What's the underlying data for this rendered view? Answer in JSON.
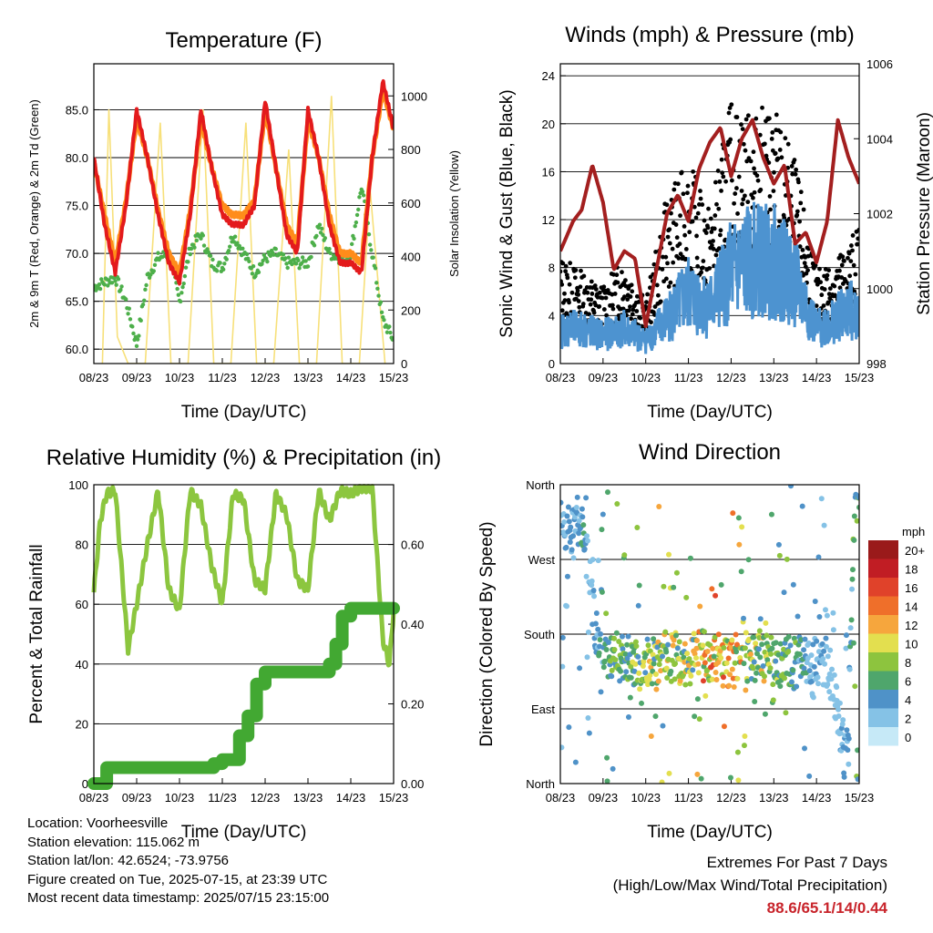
{
  "chart_data": [
    {
      "type": "line",
      "title": "Temperature (F)",
      "xlabel": "Time (Day/UTC)",
      "ylabel": "2m & 9m T (Red, Orange) & 2m Td (Green)",
      "ylabel_right": "Solar Insolation (Yellow)",
      "x_ticks": [
        "08/23",
        "09/23",
        "10/23",
        "11/23",
        "12/23",
        "13/23",
        "14/23",
        "15/23"
      ],
      "y_ticks": [
        "60.0",
        "65.0",
        "70.0",
        "75.0",
        "80.0",
        "85.0"
      ],
      "y_ticks_right": [
        "0",
        "200",
        "400",
        "600",
        "800",
        "1000"
      ],
      "ylim": [
        58.5,
        89.8
      ],
      "ylim_right": [
        0,
        1120
      ],
      "series": [
        {
          "name": "2m T",
          "color": "#e31a1c",
          "x": [
            0,
            0.25,
            0.5,
            0.75,
            1,
            1.25,
            1.5,
            1.75,
            2,
            2.25,
            2.5,
            2.75,
            3,
            3.25,
            3.5,
            3.75,
            4,
            4.25,
            4.5,
            4.75,
            5,
            5.25,
            5.5,
            5.75,
            6,
            6.25,
            6.5,
            6.75,
            7
          ],
          "values": [
            80,
            73,
            68,
            75,
            85,
            80,
            74,
            69,
            67,
            74,
            85,
            79,
            74,
            73,
            73,
            75,
            86,
            79,
            72,
            70,
            85,
            80,
            73,
            69,
            69,
            68,
            80,
            88,
            83
          ]
        },
        {
          "name": "9m T",
          "color": "#ff8c1a",
          "x": [
            0,
            0.25,
            0.5,
            0.75,
            1,
            1.25,
            1.5,
            1.75,
            2,
            2.25,
            2.5,
            2.75,
            3,
            3.25,
            3.5,
            3.75,
            4,
            4.25,
            4.5,
            4.75,
            5,
            5.25,
            5.5,
            5.75,
            6,
            6.25,
            6.5,
            6.75,
            7
          ],
          "values": [
            79.5,
            74,
            69,
            75.5,
            84,
            80,
            74.5,
            70,
            68,
            74.5,
            84,
            79,
            75,
            74,
            74,
            75.5,
            85,
            79,
            73,
            71,
            84,
            80,
            74,
            70,
            70,
            69,
            80,
            87,
            83
          ]
        },
        {
          "name": "2m Td",
          "color": "#4daf4a",
          "x": [
            0,
            0.25,
            0.5,
            0.75,
            1,
            1.25,
            1.5,
            1.75,
            2,
            2.25,
            2.5,
            2.75,
            3,
            3.25,
            3.5,
            3.75,
            4,
            4.25,
            4.5,
            4.75,
            5,
            5.25,
            5.5,
            5.75,
            6,
            6.25,
            6.5,
            6.75,
            7
          ],
          "values": [
            66.5,
            67,
            67.5,
            65,
            60.5,
            67.5,
            69.5,
            70,
            65,
            70.5,
            72,
            69,
            68.5,
            72,
            70,
            68,
            69.5,
            70,
            69,
            69,
            69,
            73,
            70,
            69.5,
            70,
            77,
            70,
            63,
            61
          ]
        },
        {
          "name": "Solar Insolation",
          "axis": "right",
          "color": "#f7e07a",
          "x": [
            0.2,
            0.35,
            0.55,
            0.8,
            1.2,
            1.55,
            1.8,
            2.2,
            2.55,
            2.8,
            3.2,
            3.55,
            3.8,
            4.2,
            4.55,
            4.8,
            5.2,
            5.55,
            5.8,
            6.2,
            6.45,
            6.8
          ],
          "values": [
            0,
            950,
            100,
            0,
            0,
            900,
            0,
            0,
            950,
            0,
            0,
            900,
            0,
            0,
            800,
            0,
            0,
            1000,
            0,
            0,
            650,
            0
          ]
        }
      ]
    },
    {
      "type": "scatter",
      "title": "Winds (mph) & Pressure (mb)",
      "xlabel": "Time (Day/UTC)",
      "ylabel": "Sonic Wind & Gust (Blue, Black)",
      "ylabel_right": "Station Pressure (Maroon)",
      "x_ticks": [
        "08/23",
        "09/23",
        "10/23",
        "11/23",
        "12/23",
        "13/23",
        "14/23",
        "15/23"
      ],
      "y_ticks": [
        "0",
        "4",
        "8",
        "12",
        "16",
        "20",
        "24"
      ],
      "y_ticks_right": [
        "998",
        "1000",
        "1002",
        "1004",
        "1006"
      ],
      "ylim": [
        0,
        25
      ],
      "ylim_right": [
        998,
        1006
      ],
      "series": [
        {
          "name": "Sonic Wind",
          "color": "#4d93d0",
          "x": [
            0,
            0.5,
            1,
            1.5,
            2,
            2.5,
            3,
            3.5,
            4,
            4.5,
            5,
            5.5,
            6,
            6.5,
            7
          ],
          "values": [
            3,
            3,
            2.5,
            3,
            2,
            4,
            6,
            5,
            8,
            9,
            9,
            7,
            3,
            4,
            5
          ]
        },
        {
          "name": "Gust",
          "color": "#000000",
          "x": [
            0,
            0.5,
            1,
            1.5,
            2,
            2.5,
            3,
            3.5,
            4,
            4.5,
            5,
            5.5,
            6,
            6.5,
            7
          ],
          "values": [
            7,
            6,
            5,
            7,
            4,
            11,
            13,
            10,
            17,
            16,
            17,
            13,
            6,
            7,
            9
          ]
        },
        {
          "name": "Station Pressure",
          "axis": "right",
          "color": "#a31f1f",
          "x": [
            0,
            0.3,
            0.5,
            0.75,
            1,
            1.25,
            1.5,
            1.75,
            2,
            2.25,
            2.5,
            2.75,
            3,
            3.25,
            3.5,
            3.75,
            4,
            4.25,
            4.5,
            4.75,
            5,
            5.25,
            5.5,
            5.75,
            6,
            6.25,
            6.5,
            6.75,
            7
          ],
          "values": [
            1001,
            1001.8,
            1002.1,
            1003.3,
            1002.3,
            1000.5,
            1001,
            1000.8,
            999,
            1000.5,
            1002,
            1002.5,
            1001.8,
            1003.2,
            1003.9,
            1004.3,
            1003,
            1004,
            1004.5,
            1003.5,
            1002.8,
            1003.3,
            1001.2,
            1001.5,
            1000.7,
            1001.8,
            1004.5,
            1003.5,
            1002.8
          ]
        }
      ]
    },
    {
      "type": "line",
      "title": "Relative Humidity (%) & Precipitation (in)",
      "xlabel": "Time (Day/UTC)",
      "ylabel": "Percent & Total Rainfall",
      "x_ticks": [
        "08/23",
        "09/23",
        "10/23",
        "11/23",
        "12/23",
        "13/23",
        "14/23",
        "15/23"
      ],
      "y_ticks": [
        "0",
        "20",
        "40",
        "60",
        "80",
        "100"
      ],
      "y_ticks_right": [
        "0.00",
        "0.20",
        "0.40",
        "0.60"
      ],
      "ylim": [
        0,
        100
      ],
      "ylim_right": [
        0,
        0.75
      ],
      "series": [
        {
          "name": "Relative Humidity",
          "color": "#8cc63f",
          "x": [
            0,
            0.15,
            0.3,
            0.5,
            0.8,
            1,
            1.25,
            1.5,
            1.75,
            2,
            2.25,
            2.5,
            2.75,
            3,
            3.25,
            3.5,
            3.75,
            4,
            4.25,
            4.5,
            4.75,
            5,
            5.25,
            5.5,
            5.75,
            6,
            6.25,
            6.5,
            6.75,
            6.9,
            7
          ],
          "values": [
            64,
            88,
            97,
            98,
            45,
            60,
            80,
            98,
            65,
            58,
            98,
            93,
            73,
            60,
            97,
            95,
            68,
            65,
            97,
            90,
            68,
            65,
            98,
            88,
            98,
            97,
            99,
            99,
            48,
            40,
            58
          ]
        },
        {
          "name": "Total Precipitation",
          "axis": "right",
          "color": "#42a832",
          "x": [
            0,
            0.2,
            0.3,
            0.5,
            1,
            2,
            2.8,
            3,
            3.2,
            3.4,
            3.6,
            3.8,
            4,
            4.5,
            5,
            5.5,
            5.65,
            5.8,
            6,
            6.5,
            7
          ],
          "values": [
            0,
            0,
            0.04,
            0.04,
            0.04,
            0.04,
            0.05,
            0.06,
            0.06,
            0.12,
            0.17,
            0.25,
            0.28,
            0.28,
            0.28,
            0.3,
            0.35,
            0.42,
            0.44,
            0.44,
            0.44
          ]
        }
      ]
    },
    {
      "type": "scatter",
      "title": "Wind Direction",
      "xlabel": "Time (Day/UTC)",
      "ylabel": "Direction (Colored By Speed)",
      "x_ticks": [
        "08/23",
        "09/23",
        "10/23",
        "11/23",
        "12/23",
        "13/23",
        "14/23",
        "15/23"
      ],
      "y_ticks": [
        "North",
        "East",
        "South",
        "West",
        "North"
      ],
      "ylim": [
        0,
        360
      ],
      "colorbar_title": "mph",
      "colorbar_labels": [
        "0",
        "2",
        "4",
        "6",
        "8",
        "10",
        "12",
        "14",
        "16",
        "18",
        "20+"
      ],
      "colorbar_colors": [
        "#c6e9f7",
        "#85c2e6",
        "#4f92c8",
        "#4fa66c",
        "#8dc43e",
        "#e3df4f",
        "#f6a63d",
        "#ef6f2a",
        "#e0422a",
        "#c11d24",
        "#9a1a1a"
      ],
      "series": [
        {
          "name": "Direction",
          "x": [
            0.1,
            0.3,
            0.5,
            0.7,
            0.9,
            1.1,
            1.3,
            1.5,
            1.7,
            1.9,
            2.1,
            2.3,
            2.5,
            2.7,
            2.9,
            3.1,
            3.3,
            3.5,
            3.7,
            3.9,
            4.1,
            4.3,
            4.5,
            4.7,
            4.9,
            5.1,
            5.3,
            5.5,
            5.7,
            5.9,
            6.1,
            6.3,
            6.5,
            6.7,
            6.9
          ],
          "values": [
            310,
            300,
            320,
            240,
            160,
            150,
            155,
            150,
            145,
            140,
            150,
            145,
            155,
            150,
            145,
            150,
            155,
            150,
            150,
            145,
            150,
            155,
            150,
            155,
            150,
            145,
            150,
            145,
            150,
            150,
            150,
            140,
            90,
            20,
            340
          ],
          "speeds": [
            3,
            3,
            4,
            2,
            4,
            5,
            6,
            6,
            7,
            7,
            8,
            8,
            8,
            9,
            8,
            9,
            10,
            11,
            11,
            10,
            10,
            9,
            8,
            8,
            7,
            6,
            6,
            5,
            4,
            3,
            3,
            2,
            2,
            3,
            6
          ]
        }
      ]
    }
  ],
  "info": {
    "location": "Location: Voorheesville",
    "elevation": "Station elevation: 115.062 m",
    "latlon": "Station lat/lon: 42.6524; -73.9756",
    "created": "Figure created on Tue, 2025-07-15, at 23:39 UTC",
    "timestamp": "Most recent data timestamp: 2025/07/15 23:15:00"
  },
  "extremes": {
    "title": "Extremes For Past 7 Days",
    "subtitle": "(High/Low/Max Wind/Total Precipitation)",
    "values": "88.6/65.1/14/0.44"
  }
}
